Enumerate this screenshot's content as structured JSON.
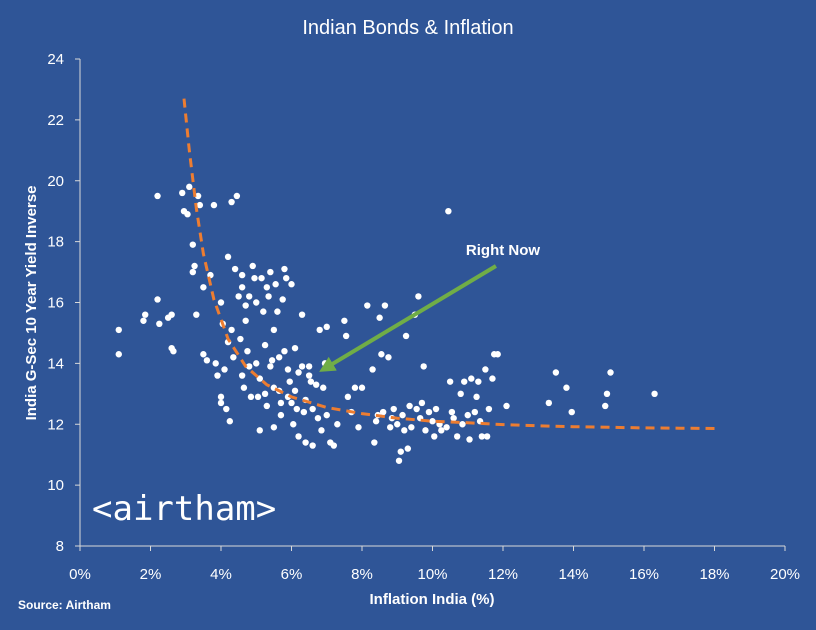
{
  "chart_data": {
    "type": "scatter",
    "title": "Indian Bonds & Inflation",
    "xlabel": "Inflation India (%)",
    "ylabel": "India G-Sec 10 Year Yield Inverse",
    "xlim": [
      0,
      20
    ],
    "ylim": [
      8,
      24
    ],
    "x_ticks": [
      0,
      2,
      4,
      6,
      8,
      10,
      12,
      14,
      16,
      18,
      20
    ],
    "x_tick_labels": [
      "0%",
      "2%",
      "4%",
      "6%",
      "8%",
      "10%",
      "12%",
      "14%",
      "16%",
      "18%",
      "20%"
    ],
    "y_ticks": [
      8,
      10,
      12,
      14,
      16,
      18,
      20,
      22,
      24
    ],
    "y_tick_labels": [
      "8",
      "10",
      "12",
      "14",
      "16",
      "18",
      "20",
      "22",
      "24"
    ],
    "grid": false,
    "colors": {
      "background": "#2f5597",
      "points": "#ffffff",
      "trend": "#ed7d31",
      "arrow": "#70ad47"
    },
    "annotation": {
      "text": "Right Now",
      "arrow_from": [
        11.8,
        17.2
      ],
      "arrow_to": [
        6.9,
        13.8
      ]
    },
    "trend_line": {
      "style": "dashed",
      "points": [
        [
          2.95,
          22.7
        ],
        [
          3.1,
          21.0
        ],
        [
          3.3,
          19.1
        ],
        [
          3.5,
          17.6
        ],
        [
          3.8,
          16.1
        ],
        [
          4.2,
          14.8
        ],
        [
          4.7,
          13.9
        ],
        [
          5.3,
          13.3
        ],
        [
          6.0,
          12.9
        ],
        [
          7.0,
          12.55
        ],
        [
          8.0,
          12.35
        ],
        [
          9.0,
          12.2
        ],
        [
          10.0,
          12.1
        ],
        [
          11.0,
          12.05
        ],
        [
          12.0,
          11.99
        ],
        [
          13.0,
          11.95
        ],
        [
          14.0,
          11.92
        ],
        [
          15.0,
          11.9
        ],
        [
          16.0,
          11.88
        ],
        [
          17.0,
          11.87
        ],
        [
          18.0,
          11.86
        ]
      ]
    },
    "series": [
      {
        "name": "Observations",
        "points": [
          [
            1.1,
            15.1
          ],
          [
            1.1,
            14.3
          ],
          [
            1.8,
            15.4
          ],
          [
            1.85,
            15.6
          ],
          [
            2.2,
            19.5
          ],
          [
            2.2,
            16.1
          ],
          [
            2.25,
            15.3
          ],
          [
            2.5,
            15.5
          ],
          [
            2.6,
            15.6
          ],
          [
            2.6,
            14.5
          ],
          [
            2.65,
            14.4
          ],
          [
            2.9,
            19.6
          ],
          [
            2.95,
            19.0
          ],
          [
            3.05,
            18.9
          ],
          [
            3.1,
            19.8
          ],
          [
            3.2,
            17.9
          ],
          [
            3.2,
            17.0
          ],
          [
            3.25,
            17.2
          ],
          [
            3.3,
            15.6
          ],
          [
            3.35,
            19.5
          ],
          [
            3.4,
            19.2
          ],
          [
            3.5,
            16.5
          ],
          [
            3.5,
            14.3
          ],
          [
            3.6,
            14.1
          ],
          [
            3.7,
            16.9
          ],
          [
            3.8,
            19.2
          ],
          [
            3.85,
            14.0
          ],
          [
            3.9,
            13.6
          ],
          [
            4.0,
            16.0
          ],
          [
            4.0,
            12.9
          ],
          [
            4.0,
            12.7
          ],
          [
            4.05,
            15.3
          ],
          [
            4.1,
            13.8
          ],
          [
            4.15,
            12.5
          ],
          [
            4.2,
            17.5
          ],
          [
            4.2,
            14.7
          ],
          [
            4.25,
            12.1
          ],
          [
            4.3,
            19.3
          ],
          [
            4.3,
            15.1
          ],
          [
            4.35,
            14.2
          ],
          [
            4.4,
            17.1
          ],
          [
            4.45,
            19.5
          ],
          [
            4.5,
            16.2
          ],
          [
            4.55,
            14.8
          ],
          [
            4.6,
            16.9
          ],
          [
            4.6,
            16.5
          ],
          [
            4.6,
            13.6
          ],
          [
            4.65,
            13.2
          ],
          [
            4.7,
            15.9
          ],
          [
            4.7,
            15.4
          ],
          [
            4.75,
            14.4
          ],
          [
            4.8,
            16.2
          ],
          [
            4.8,
            13.9
          ],
          [
            4.85,
            12.9
          ],
          [
            4.9,
            17.2
          ],
          [
            4.95,
            16.8
          ],
          [
            5.0,
            16.0
          ],
          [
            5.0,
            14.0
          ],
          [
            5.05,
            12.9
          ],
          [
            5.1,
            13.5
          ],
          [
            5.1,
            11.8
          ],
          [
            5.15,
            16.8
          ],
          [
            5.2,
            15.7
          ],
          [
            5.25,
            14.6
          ],
          [
            5.25,
            13.0
          ],
          [
            5.3,
            16.5
          ],
          [
            5.3,
            12.6
          ],
          [
            5.35,
            16.2
          ],
          [
            5.4,
            17.0
          ],
          [
            5.4,
            13.9
          ],
          [
            5.45,
            14.1
          ],
          [
            5.5,
            15.1
          ],
          [
            5.5,
            13.2
          ],
          [
            5.5,
            11.9
          ],
          [
            5.55,
            16.6
          ],
          [
            5.6,
            15.7
          ],
          [
            5.65,
            14.2
          ],
          [
            5.65,
            13.1
          ],
          [
            5.7,
            12.7
          ],
          [
            5.7,
            12.3
          ],
          [
            5.75,
            16.1
          ],
          [
            5.8,
            17.1
          ],
          [
            5.8,
            14.4
          ],
          [
            5.85,
            16.8
          ],
          [
            5.9,
            13.8
          ],
          [
            5.9,
            12.9
          ],
          [
            5.95,
            13.4
          ],
          [
            6.0,
            16.6
          ],
          [
            6.0,
            12.7
          ],
          [
            6.05,
            12.0
          ],
          [
            6.1,
            14.5
          ],
          [
            6.1,
            13.1
          ],
          [
            6.15,
            12.5
          ],
          [
            6.2,
            13.7
          ],
          [
            6.2,
            11.6
          ],
          [
            6.3,
            15.6
          ],
          [
            6.3,
            13.9
          ],
          [
            6.35,
            12.4
          ],
          [
            6.4,
            12.8
          ],
          [
            6.4,
            11.4
          ],
          [
            6.5,
            13.9
          ],
          [
            6.5,
            13.6
          ],
          [
            6.55,
            13.4
          ],
          [
            6.6,
            12.5
          ],
          [
            6.6,
            11.3
          ],
          [
            6.7,
            13.3
          ],
          [
            6.75,
            12.2
          ],
          [
            6.8,
            15.1
          ],
          [
            6.85,
            11.8
          ],
          [
            6.9,
            13.2
          ],
          [
            6.95,
            14.0
          ],
          [
            7.0,
            15.2
          ],
          [
            7.0,
            12.3
          ],
          [
            7.1,
            11.4
          ],
          [
            7.2,
            11.3
          ],
          [
            7.3,
            12.0
          ],
          [
            7.5,
            15.4
          ],
          [
            7.55,
            14.9
          ],
          [
            7.6,
            12.9
          ],
          [
            7.7,
            12.4
          ],
          [
            7.8,
            13.2
          ],
          [
            7.9,
            11.9
          ],
          [
            8.0,
            13.2
          ],
          [
            8.15,
            15.9
          ],
          [
            8.3,
            13.8
          ],
          [
            8.35,
            11.4
          ],
          [
            8.4,
            12.1
          ],
          [
            8.45,
            12.3
          ],
          [
            8.5,
            15.5
          ],
          [
            8.55,
            14.3
          ],
          [
            8.6,
            12.4
          ],
          [
            8.65,
            15.9
          ],
          [
            8.75,
            14.2
          ],
          [
            8.8,
            11.9
          ],
          [
            8.85,
            12.2
          ],
          [
            8.9,
            12.5
          ],
          [
            9.0,
            12.0
          ],
          [
            9.05,
            10.8
          ],
          [
            9.1,
            11.1
          ],
          [
            9.15,
            12.3
          ],
          [
            9.2,
            11.8
          ],
          [
            9.25,
            14.9
          ],
          [
            9.3,
            11.2
          ],
          [
            9.35,
            12.6
          ],
          [
            9.4,
            11.9
          ],
          [
            9.5,
            15.6
          ],
          [
            9.55,
            12.5
          ],
          [
            9.6,
            16.2
          ],
          [
            9.65,
            12.2
          ],
          [
            9.7,
            12.7
          ],
          [
            9.75,
            13.9
          ],
          [
            9.8,
            11.8
          ],
          [
            9.9,
            12.4
          ],
          [
            10.0,
            12.1
          ],
          [
            10.05,
            11.6
          ],
          [
            10.1,
            12.5
          ],
          [
            10.2,
            12.0
          ],
          [
            10.25,
            11.8
          ],
          [
            10.4,
            11.9
          ],
          [
            10.45,
            19.0
          ],
          [
            10.5,
            13.4
          ],
          [
            10.55,
            12.4
          ],
          [
            10.6,
            12.2
          ],
          [
            10.7,
            11.6
          ],
          [
            10.8,
            13.0
          ],
          [
            10.85,
            12.0
          ],
          [
            10.9,
            13.4
          ],
          [
            11.0,
            12.3
          ],
          [
            11.05,
            11.5
          ],
          [
            11.1,
            13.5
          ],
          [
            11.2,
            12.4
          ],
          [
            11.25,
            12.9
          ],
          [
            11.3,
            13.4
          ],
          [
            11.35,
            12.1
          ],
          [
            11.4,
            11.6
          ],
          [
            11.5,
            13.8
          ],
          [
            11.55,
            11.6
          ],
          [
            11.6,
            12.5
          ],
          [
            11.7,
            13.5
          ],
          [
            11.75,
            14.3
          ],
          [
            11.85,
            14.3
          ],
          [
            12.1,
            12.6
          ],
          [
            13.3,
            12.7
          ],
          [
            13.5,
            13.7
          ],
          [
            13.8,
            13.2
          ],
          [
            13.95,
            12.4
          ],
          [
            14.9,
            12.6
          ],
          [
            14.95,
            13.0
          ],
          [
            15.05,
            13.7
          ],
          [
            16.3,
            13.0
          ]
        ]
      }
    ]
  },
  "source_note": "Source: Airtham",
  "logo_text": "<airtham>"
}
